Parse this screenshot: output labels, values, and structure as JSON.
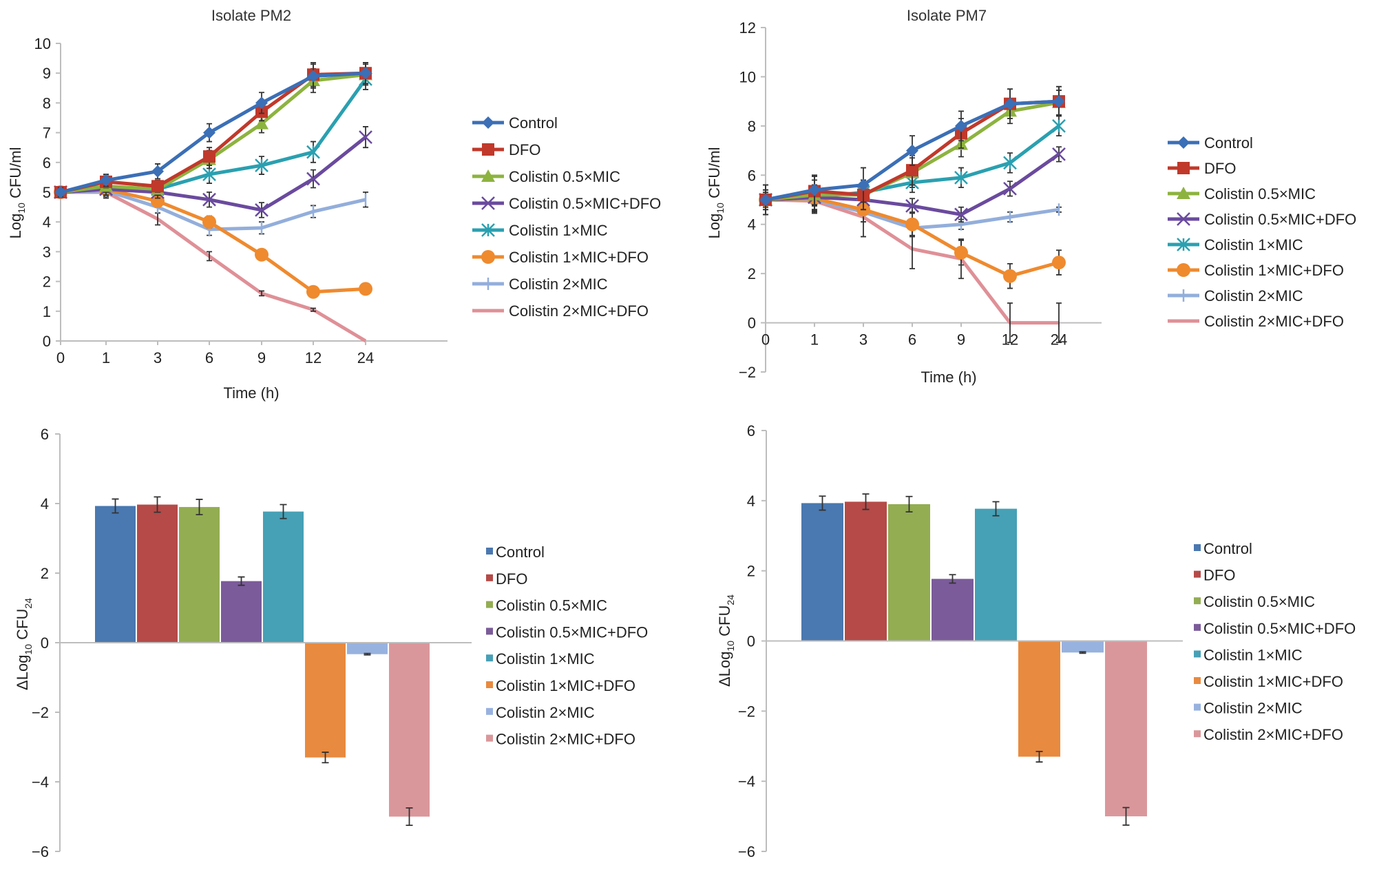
{
  "figure": {
    "series_names": [
      "Control",
      "DFO",
      "Colistin 0.5×MIC",
      "Colistin 0.5×MIC+DFO",
      "Colistin 1×MIC",
      "Colistin 1×MIC+DFO",
      "Colistin 2×MIC",
      "Colistin 2×MIC+DFO"
    ],
    "colors": {
      "line": [
        "#3b6fb6",
        "#c0392b",
        "#8db33f",
        "#6a4a9e",
        "#2aa0b0",
        "#ef8a2e",
        "#93aedb",
        "#df9097"
      ],
      "bar": [
        "#4a78b0",
        "#b54a48",
        "#93ad52",
        "#7b5b9a",
        "#46a0b6",
        "#e88a3f",
        "#98b2df",
        "#da979b"
      ]
    },
    "markers": [
      "diamond",
      "square",
      "triangle",
      "x",
      "star",
      "circle",
      "plus",
      "none"
    ]
  },
  "chart_data": [
    {
      "id": "pm2-line",
      "type": "line",
      "title": "Isolate PM2",
      "xlabel": "Time (h)",
      "ylabel_main": "Log",
      "ylabel_sub": "10",
      "ylabel_rest": " CFU/ml",
      "categories": [
        "0",
        "1",
        "3",
        "6",
        "9",
        "12",
        "24"
      ],
      "ylim": [
        0,
        10
      ],
      "yticks": [
        0,
        1,
        2,
        3,
        4,
        5,
        6,
        7,
        8,
        9,
        10
      ],
      "grid": false,
      "legend": "right",
      "series": [
        {
          "name": "Control",
          "values": [
            5.0,
            5.4,
            5.7,
            7.0,
            8.0,
            8.9,
            9.0
          ],
          "err": [
            0.15,
            0.2,
            0.25,
            0.3,
            0.35,
            0.4,
            0.35
          ]
        },
        {
          "name": "DFO",
          "values": [
            5.0,
            5.35,
            5.2,
            6.2,
            7.7,
            8.95,
            9.0
          ],
          "err": [
            0.15,
            0.2,
            0.2,
            0.3,
            0.3,
            0.4,
            0.35
          ]
        },
        {
          "name": "Colistin 0.5×MIC",
          "values": [
            5.0,
            5.2,
            5.1,
            6.1,
            7.3,
            8.75,
            8.95
          ],
          "err": [
            0.15,
            0.2,
            0.2,
            0.3,
            0.3,
            0.4,
            0.35
          ]
        },
        {
          "name": "Colistin 0.5×MIC+DFO",
          "values": [
            5.0,
            5.1,
            5.0,
            4.75,
            4.4,
            5.45,
            6.85
          ],
          "err": [
            0.15,
            0.2,
            0.2,
            0.25,
            0.25,
            0.3,
            0.35
          ]
        },
        {
          "name": "Colistin 1×MIC",
          "values": [
            5.0,
            5.1,
            5.1,
            5.6,
            5.9,
            6.35,
            8.8
          ],
          "err": [
            0.15,
            0.2,
            0.2,
            0.3,
            0.3,
            0.35,
            0.35
          ]
        },
        {
          "name": "Colistin 1×MIC+DFO",
          "values": [
            5.0,
            5.1,
            4.7,
            4.0,
            2.9,
            1.65,
            1.75
          ],
          "err": [
            0.15,
            0.2,
            0.2,
            0.2,
            0.15,
            0.1,
            0.1
          ]
        },
        {
          "name": "Colistin 2×MIC",
          "values": [
            5.0,
            5.05,
            4.5,
            3.75,
            3.8,
            4.35,
            4.75
          ],
          "err": [
            0.15,
            0.2,
            0.2,
            0.2,
            0.2,
            0.2,
            0.25
          ]
        },
        {
          "name": "Colistin 2×MIC+DFO",
          "values": [
            5.0,
            5.0,
            4.1,
            2.85,
            1.6,
            1.05,
            0.0
          ],
          "err": [
            0.15,
            0.2,
            0.2,
            0.15,
            0.08,
            0.05,
            0.0
          ]
        }
      ]
    },
    {
      "id": "pm7-line",
      "type": "line",
      "title": "Isolate PM7",
      "xlabel": "Time (h)",
      "ylabel_main": "Log",
      "ylabel_sub": "10",
      "ylabel_rest": " CFU/ml",
      "categories": [
        "0",
        "1",
        "3",
        "6",
        "9",
        "12",
        "24"
      ],
      "ylim": [
        -2,
        12
      ],
      "yticks": [
        -2,
        0,
        2,
        4,
        6,
        8,
        10,
        12
      ],
      "grid": false,
      "legend": "right",
      "series": [
        {
          "name": "Control",
          "values": [
            5.0,
            5.4,
            5.6,
            7.0,
            8.0,
            8.9,
            9.0
          ],
          "err": [
            0.6,
            0.6,
            0.7,
            0.6,
            0.6,
            0.6,
            0.6
          ]
        },
        {
          "name": "DFO",
          "values": [
            5.0,
            5.35,
            5.2,
            6.2,
            7.7,
            8.9,
            9.0
          ],
          "err": [
            0.6,
            0.6,
            0.6,
            0.6,
            0.6,
            0.6,
            0.6
          ]
        },
        {
          "name": "Colistin 0.5×MIC",
          "values": [
            5.0,
            5.2,
            5.2,
            6.1,
            7.25,
            8.6,
            8.95
          ],
          "err": [
            0.6,
            0.6,
            0.6,
            0.6,
            0.5,
            0.5,
            0.5
          ]
        },
        {
          "name": "Colistin 0.5×MIC+DFO",
          "values": [
            5.0,
            5.1,
            5.0,
            4.75,
            4.4,
            5.45,
            6.85
          ],
          "err": [
            0.4,
            0.5,
            0.4,
            0.3,
            0.3,
            0.3,
            0.3
          ]
        },
        {
          "name": "Colistin 1×MIC",
          "values": [
            5.0,
            5.1,
            5.3,
            5.7,
            5.9,
            6.5,
            8.0
          ],
          "err": [
            0.4,
            0.5,
            0.4,
            0.4,
            0.4,
            0.4,
            0.4
          ]
        },
        {
          "name": "Colistin 1×MIC+DFO",
          "values": [
            5.0,
            5.05,
            4.6,
            4.0,
            2.85,
            1.9,
            2.45
          ],
          "err": [
            0.4,
            0.5,
            0.5,
            0.5,
            0.5,
            0.5,
            0.5
          ]
        },
        {
          "name": "Colistin 2×MIC",
          "values": [
            5.0,
            5.0,
            4.5,
            3.85,
            4.0,
            4.3,
            4.6
          ],
          "err": [
            0.3,
            0.5,
            0.4,
            0.3,
            0.2,
            0.2,
            0.1
          ]
        },
        {
          "name": "Colistin 2×MIC+DFO",
          "values": [
            5.0,
            4.95,
            4.3,
            3.0,
            2.6,
            0.0,
            0.0
          ],
          "err": [
            0.3,
            0.5,
            0.8,
            0.8,
            0.8,
            0.8,
            0.8
          ]
        }
      ]
    },
    {
      "id": "pm2-bar",
      "type": "bar",
      "title": "",
      "xlabel": "",
      "ylabel_main": "ΔLog",
      "ylabel_sub": "10",
      "ylabel_rest": " CFU",
      "ylabel_sub2": "24",
      "categories": [
        "Control",
        "DFO",
        "Colistin 0.5×MIC",
        "Colistin 0.5×MIC+DFO",
        "Colistin 1×MIC",
        "Colistin 1×MIC+DFO",
        "Colistin 2×MIC",
        "Colistin 2×MIC+DFO"
      ],
      "values": [
        3.93,
        3.97,
        3.9,
        1.77,
        3.77,
        -3.3,
        -0.33,
        -5.0
      ],
      "err": [
        0.2,
        0.22,
        0.22,
        0.12,
        0.2,
        0.15,
        0.02,
        0.25
      ],
      "ylim": [
        -6,
        6
      ],
      "yticks": [
        -6,
        -4,
        -2,
        0,
        2,
        4,
        6
      ],
      "grid": false,
      "legend": "right"
    },
    {
      "id": "pm7-bar",
      "type": "bar",
      "title": "",
      "xlabel": "",
      "ylabel_main": "ΔLog",
      "ylabel_sub": "10",
      "ylabel_rest": " CFU",
      "ylabel_sub2": "24",
      "categories": [
        "Control",
        "DFO",
        "Colistin 0.5×MIC",
        "Colistin 0.5×MIC+DFO",
        "Colistin 1×MIC",
        "Colistin 1×MIC+DFO",
        "Colistin 2×MIC",
        "Colistin 2×MIC+DFO"
      ],
      "values": [
        3.93,
        3.97,
        3.9,
        1.77,
        3.77,
        -3.3,
        -0.33,
        -5.0
      ],
      "err": [
        0.2,
        0.22,
        0.22,
        0.12,
        0.2,
        0.15,
        0.02,
        0.25
      ],
      "ylim": [
        -6,
        6
      ],
      "yticks": [
        -6,
        -4,
        -2,
        0,
        2,
        4,
        6
      ],
      "grid": false,
      "legend": "right"
    }
  ]
}
